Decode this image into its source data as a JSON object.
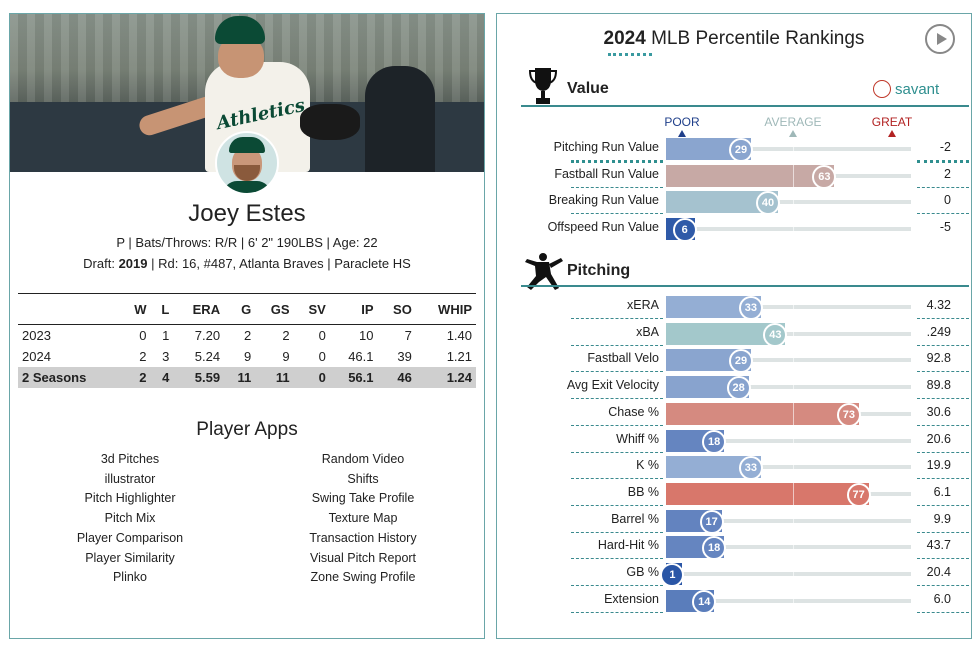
{
  "player": {
    "name": "Joey Estes",
    "bio_line": "P | Bats/Throws: R/R | 6' 2\" 190LBS | Age: 22",
    "draft_label": "Draft: ",
    "draft_year": "2019",
    "draft_round": " | Rd: 16, #487, ",
    "draft_team": "Atlanta Braves",
    "draft_school": " | Paraclete HS",
    "jersey_text": "Athletics"
  },
  "stats": {
    "headers": [
      "",
      "W",
      "L",
      "ERA",
      "G",
      "GS",
      "SV",
      "IP",
      "SO",
      "WHIP"
    ],
    "rows": [
      [
        "2023",
        "0",
        "1",
        "7.20",
        "2",
        "2",
        "0",
        "10",
        "7",
        "1.40"
      ],
      [
        "2024",
        "2",
        "3",
        "5.24",
        "9",
        "9",
        "0",
        "46.1",
        "39",
        "1.21"
      ],
      [
        "2 Seasons",
        "2",
        "4",
        "5.59",
        "11",
        "11",
        "0",
        "56.1",
        "46",
        "1.24"
      ]
    ]
  },
  "player_apps": {
    "title": "Player Apps",
    "left": [
      "3d Pitches",
      "illustrator",
      "Pitch Highlighter",
      "Pitch Mix",
      "Player Comparison",
      "Player Similarity",
      "Plinko"
    ],
    "right": [
      "Random Video",
      "Shifts",
      "Swing Take Profile",
      "Texture Map",
      "Transaction History",
      "Visual Pitch Report",
      "Zone Swing Profile"
    ]
  },
  "rankings": {
    "year": "2024",
    "title_rest": " MLB Percentile Rankings",
    "play_icon": "play-circle-icon",
    "brand": "savant",
    "scale": {
      "poor": "POOR",
      "average": "AVERAGE",
      "great": "GREAT"
    },
    "colors": {
      "poor_dark": "#2f5aa8",
      "poor": "#7f9fcf",
      "avg_blue": "#a9bfd6",
      "avg_teal": "#9fc6cb",
      "avg_red": "#c9a8a4",
      "great": "#d9766a",
      "accent": "#3a8a8e"
    },
    "value": {
      "title": "Value",
      "icon": "trophy-icon",
      "metrics": [
        {
          "label": "Pitching Run Value",
          "percentile": 29,
          "stat": "-2",
          "tone": "#8aa5cf"
        },
        {
          "label": "Fastball Run Value",
          "percentile": 63,
          "stat": "2",
          "tone": "#c7a9a5"
        },
        {
          "label": "Breaking Run Value",
          "percentile": 40,
          "stat": "0",
          "tone": "#a5c2cf"
        },
        {
          "label": "Offspeed Run Value",
          "percentile": 6,
          "stat": "-5",
          "tone": "#2f5aa8"
        }
      ]
    },
    "pitching": {
      "title": "Pitching",
      "icon": "pitcher-icon",
      "metrics": [
        {
          "label": "xERA",
          "percentile": 33,
          "stat": "4.32",
          "tone": "#94aed4"
        },
        {
          "label": "xBA",
          "percentile": 43,
          "stat": ".249",
          "tone": "#a3c8cb"
        },
        {
          "label": "Fastball Velo",
          "percentile": 29,
          "stat": "92.8",
          "tone": "#8aa5cf"
        },
        {
          "label": "Avg Exit Velocity",
          "percentile": 28,
          "stat": "89.8",
          "tone": "#88a3ce"
        },
        {
          "label": "Chase %",
          "percentile": 73,
          "stat": "30.6",
          "tone": "#d58a80"
        },
        {
          "label": "Whiff %",
          "percentile": 18,
          "stat": "20.6",
          "tone": "#6585c0"
        },
        {
          "label": "K %",
          "percentile": 33,
          "stat": "19.9",
          "tone": "#94aed4"
        },
        {
          "label": "BB %",
          "percentile": 77,
          "stat": "6.1",
          "tone": "#d8776b"
        },
        {
          "label": "Barrel %",
          "percentile": 17,
          "stat": "9.9",
          "tone": "#6383bf"
        },
        {
          "label": "Hard-Hit %",
          "percentile": 18,
          "stat": "43.7",
          "tone": "#6585c0"
        },
        {
          "label": "GB %",
          "percentile": 1,
          "stat": "20.4",
          "tone": "#2a56a6"
        },
        {
          "label": "Extension",
          "percentile": 14,
          "stat": "6.0",
          "tone": "#5a7dbb"
        }
      ]
    }
  }
}
